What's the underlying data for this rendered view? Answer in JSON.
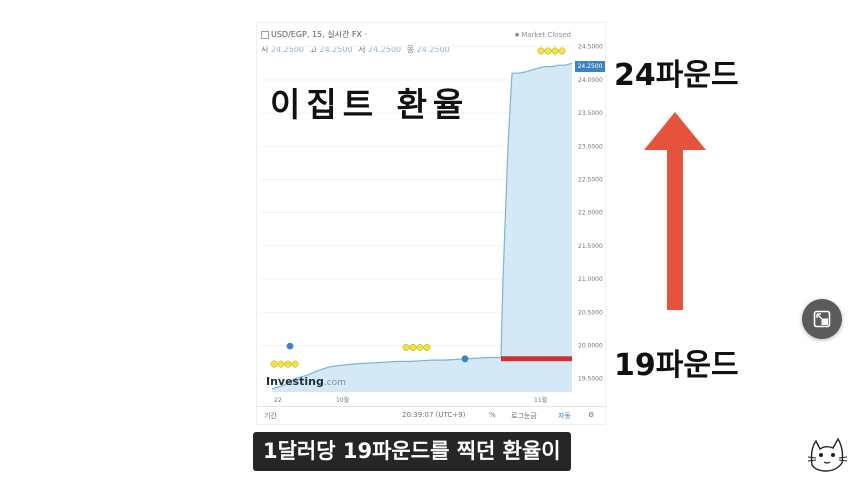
{
  "chart": {
    "symbol_line": "USD/EGP, 15, 실시간 FX ·",
    "market_status": "Market Closed",
    "ohlc": [
      {
        "label": "시",
        "value": "24.2500"
      },
      {
        "label": "고",
        "value": "24.2500"
      },
      {
        "label": "저",
        "value": "24.2500"
      },
      {
        "label": "종",
        "value": "24.2500"
      }
    ],
    "current_price_label": "24.2500",
    "price_ticks": [
      "24.5000",
      "24.0000",
      "23.5000",
      "23.0000",
      "22.5000",
      "22.0000",
      "21.5000",
      "21.0000",
      "20.5000",
      "20.0000",
      "19.5000"
    ],
    "date_ticks": [
      "22",
      "10월",
      "11월"
    ],
    "footer": {
      "period_label": "기간",
      "time": "20:39:07 (UTC+9)",
      "percent": "%",
      "log": "로그눈금",
      "auto": "자동"
    },
    "logo": {
      "name": "Investing",
      "suffix": ".com"
    }
  },
  "overlay": {
    "title": "이집트 환율",
    "top_annotation": "24파운드",
    "bottom_annotation": "19파운드"
  },
  "subtitle": "1달러당 19파운드를 찍던 환율이",
  "colors": {
    "area_fill": "#d4e8f6",
    "line": "#7ab3dd",
    "arrow": "#e5533d",
    "marker": "#d32f2f",
    "badge": "#f4e243"
  },
  "icons": {
    "side_button": "mini-player-icon",
    "mascot": "cat-sketch-icon"
  },
  "chart_data": {
    "type": "area",
    "x": [
      "22",
      "10월",
      "11월"
    ],
    "ylim": [
      19.3,
      24.6
    ],
    "series": [
      {
        "values_by_segment": [
          19.35,
          19.4,
          19.5,
          19.55,
          19.62,
          19.68,
          19.7,
          19.72,
          19.73,
          19.74,
          19.75,
          19.76,
          19.76,
          19.77,
          19.78,
          19.78,
          19.79,
          19.8,
          19.81,
          19.82,
          19.82,
          21.0,
          23.0,
          24.1,
          24.1,
          24.12,
          24.15,
          24.18,
          24.2,
          24.2,
          24.22,
          24.22,
          24.25
        ]
      }
    ]
  }
}
